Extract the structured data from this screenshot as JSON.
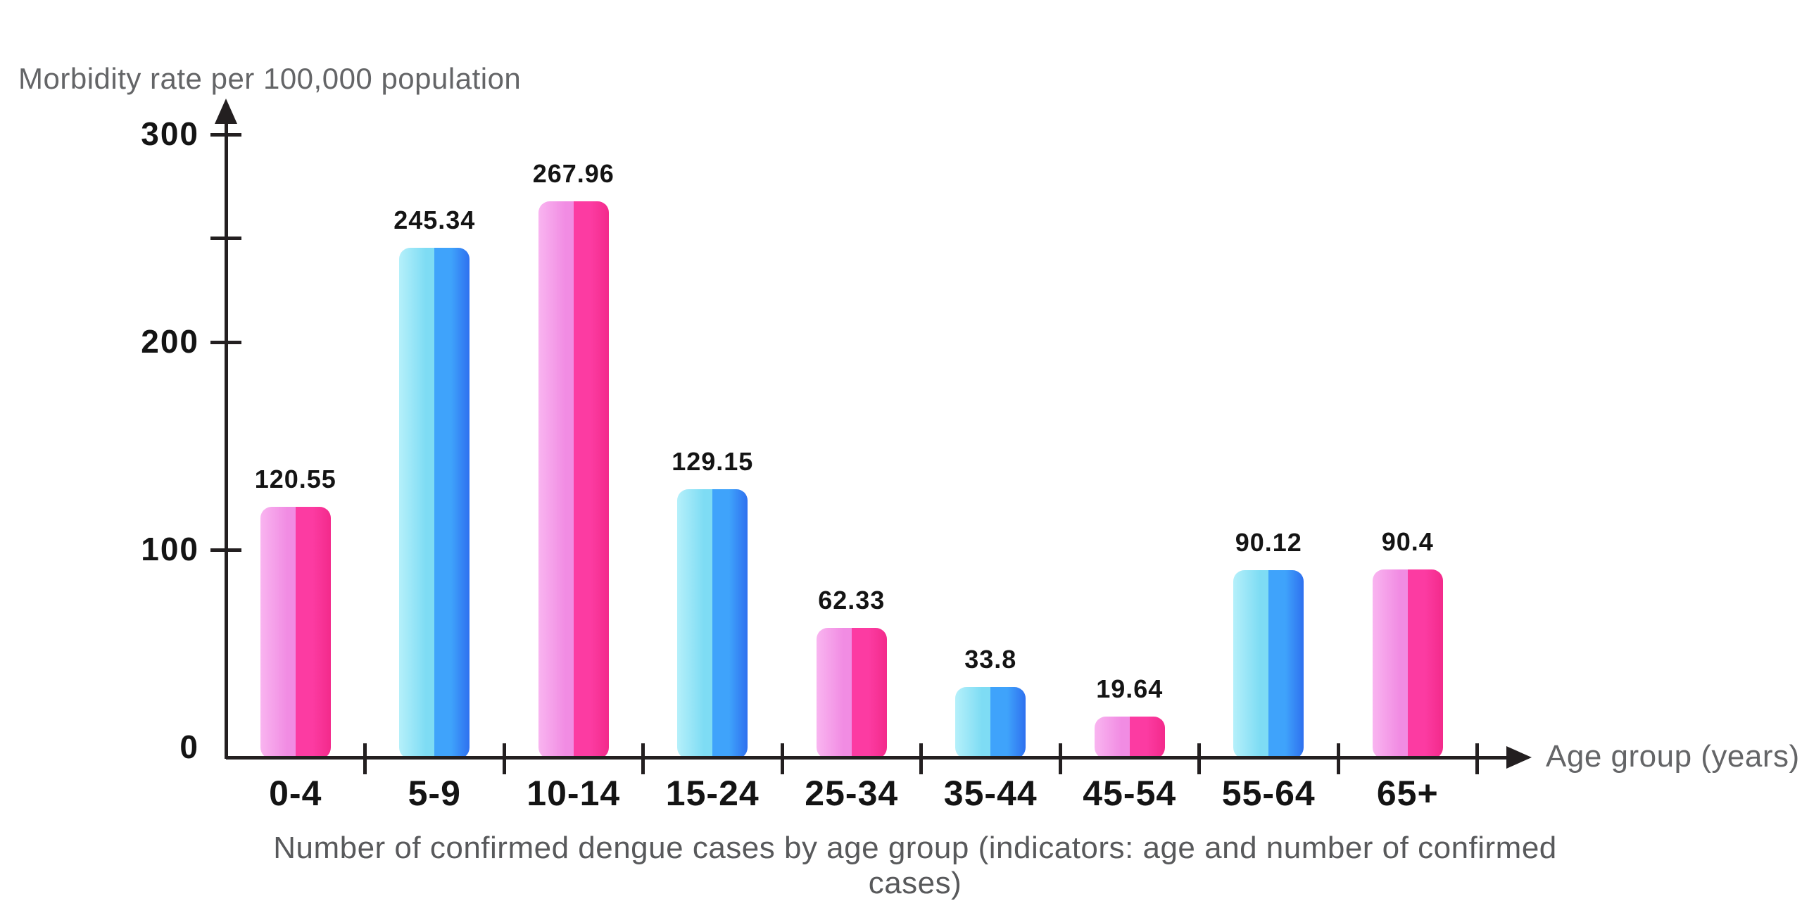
{
  "chart_data": {
    "type": "bar",
    "title": "Number of confirmed dengue cases by age group (indicators: age and number of confirmed cases)",
    "ylabel": "Morbidity rate per 100,000 population",
    "xlabel": "Age group (years)",
    "categories": [
      "0-4",
      "5-9",
      "10-14",
      "15-24",
      "25-34",
      "35-44",
      "45-54",
      "55-64",
      "65+"
    ],
    "values": [
      120.55,
      245.34,
      267.96,
      129.15,
      62.33,
      33.8,
      19.64,
      90.12,
      90.4
    ],
    "value_labels": [
      "120.55",
      "245.34",
      "267.96",
      "129.15",
      "62.33",
      "33.8",
      "19.64",
      "90.12",
      "90.4"
    ],
    "bar_style_pattern": [
      "pink",
      "blue",
      "pink",
      "blue",
      "pink",
      "blue",
      "pink",
      "blue",
      "pink"
    ],
    "y_ticks_labeled": [
      0,
      100,
      200,
      300
    ],
    "y_ticks_minor": [
      250
    ],
    "ylim": [
      0,
      315
    ],
    "grid": false,
    "legend": null,
    "colors": {
      "pink_bar_left_highlight": "#f9b5f0",
      "pink_bar_left": "#f18ce3",
      "pink_bar_right": "#fc3ba2",
      "pink_bar_right_deep": "#f32a8b",
      "blue_bar_left_highlight": "#b5f0fa",
      "blue_bar_left": "#7edcf4",
      "blue_bar_right": "#3fa3fb",
      "blue_bar_right_deep": "#2e70ef",
      "axis": "#231f20",
      "label_text": "#141414",
      "muted_text": "#646567",
      "background": "#ffffff"
    }
  }
}
